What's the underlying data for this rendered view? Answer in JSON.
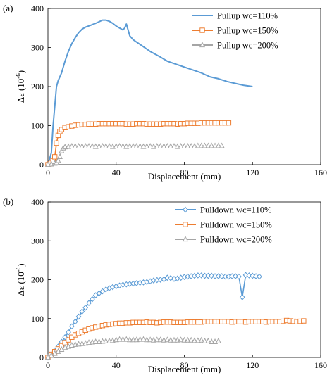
{
  "chart_data": [
    {
      "type": "line",
      "panel_label": "(a)",
      "xlabel": "Displacement (mm)",
      "ylabel_main": "Δε (10",
      "ylabel_sup": "-6",
      "ylabel_close": ")",
      "xlim": [
        0,
        160
      ],
      "ylim": [
        0,
        400
      ],
      "xticks": [
        "0",
        "40",
        "80",
        "120",
        "160"
      ],
      "yticks": [
        "0",
        "100",
        "200",
        "300",
        "400"
      ],
      "legend_position": "top-right",
      "grid": false,
      "series": [
        {
          "name": "Pullup wc=110%",
          "color": "#5B9BD5",
          "marker": "none",
          "x": [
            0,
            2,
            3,
            5,
            6,
            8,
            10,
            12,
            14,
            16,
            18,
            20,
            22,
            25,
            28,
            30,
            32,
            34,
            36,
            38,
            40,
            42,
            44,
            45,
            46,
            47,
            48,
            50,
            55,
            60,
            65,
            70,
            80,
            90,
            95,
            100,
            105,
            110,
            115,
            120
          ],
          "y": [
            0,
            30,
            100,
            200,
            215,
            235,
            265,
            290,
            310,
            325,
            338,
            347,
            352,
            357,
            362,
            366,
            370,
            370,
            367,
            362,
            355,
            350,
            345,
            350,
            360,
            345,
            330,
            320,
            305,
            290,
            278,
            265,
            250,
            235,
            225,
            220,
            213,
            208,
            203,
            200
          ]
        },
        {
          "name": "Pullup wc=150%",
          "color": "#ED7D31",
          "marker": "square",
          "x": [
            0,
            1,
            2,
            3,
            4,
            5,
            6,
            7,
            8,
            10,
            12,
            14,
            16,
            18,
            20,
            22,
            24,
            26,
            28,
            30,
            32,
            34,
            36,
            38,
            40,
            42,
            44,
            46,
            48,
            50,
            52,
            54,
            56,
            58,
            60,
            62,
            64,
            66,
            68,
            70,
            72,
            74,
            76,
            78,
            80,
            82,
            84,
            86,
            88,
            90,
            92,
            94,
            96,
            98,
            100,
            102,
            104,
            106
          ],
          "y": [
            0,
            2,
            5,
            10,
            20,
            55,
            75,
            85,
            90,
            95,
            97,
            99,
            101,
            102,
            103,
            103,
            104,
            104,
            104,
            105,
            105,
            105,
            105,
            105,
            105,
            105,
            105,
            104,
            104,
            104,
            105,
            105,
            105,
            104,
            104,
            104,
            104,
            104,
            105,
            105,
            105,
            105,
            104,
            105,
            105,
            106,
            106,
            106,
            106,
            107,
            107,
            107,
            107,
            107,
            107,
            107,
            107,
            107
          ]
        },
        {
          "name": "Pullup wc=200%",
          "color": "#A5A5A5",
          "marker": "triangle",
          "x": [
            0,
            2,
            4,
            5,
            6,
            7,
            8,
            9,
            10,
            12,
            14,
            16,
            18,
            20,
            22,
            24,
            26,
            28,
            30,
            32,
            34,
            36,
            38,
            40,
            42,
            44,
            46,
            48,
            50,
            52,
            54,
            56,
            58,
            60,
            62,
            64,
            66,
            68,
            70,
            72,
            74,
            76,
            78,
            80,
            82,
            84,
            86,
            88,
            90,
            92,
            94,
            96,
            98,
            100,
            102
          ],
          "y": [
            0,
            1,
            3,
            5,
            10,
            20,
            35,
            42,
            45,
            46,
            47,
            47,
            47,
            47,
            47,
            47,
            47,
            46,
            47,
            47,
            47,
            47,
            46,
            47,
            47,
            47,
            46,
            47,
            47,
            47,
            47,
            46,
            47,
            47,
            46,
            47,
            47,
            47,
            47,
            47,
            47,
            46,
            47,
            47,
            47,
            47,
            47,
            48,
            48,
            48,
            48,
            48,
            48,
            48,
            48
          ]
        }
      ]
    },
    {
      "type": "line",
      "panel_label": "(b)",
      "xlabel": "Displacement (mm)",
      "ylabel_main": "Δε (10",
      "ylabel_sup": "-6",
      "ylabel_close": ")",
      "xlim": [
        0,
        160
      ],
      "ylim": [
        0,
        400
      ],
      "xticks": [
        "0",
        "40",
        "80",
        "120",
        "160"
      ],
      "yticks": [
        "0",
        "100",
        "200",
        "300",
        "400"
      ],
      "legend_position": "top-right",
      "grid": false,
      "series": [
        {
          "name": "Pulldown wc=110%",
          "color": "#5B9BD5",
          "marker": "diamond",
          "x": [
            0,
            2,
            4,
            6,
            8,
            10,
            12,
            14,
            16,
            18,
            20,
            22,
            24,
            26,
            28,
            30,
            32,
            34,
            36,
            38,
            40,
            42,
            44,
            46,
            48,
            50,
            52,
            54,
            56,
            58,
            60,
            62,
            64,
            66,
            68,
            70,
            72,
            74,
            76,
            78,
            80,
            82,
            84,
            86,
            88,
            90,
            92,
            94,
            96,
            98,
            100,
            102,
            104,
            106,
            108,
            110,
            112,
            114,
            116,
            118,
            120,
            122,
            124
          ],
          "y": [
            0,
            8,
            18,
            28,
            40,
            52,
            65,
            80,
            92,
            105,
            118,
            128,
            140,
            150,
            160,
            165,
            170,
            175,
            178,
            181,
            183,
            185,
            187,
            188,
            189,
            190,
            191,
            192,
            193,
            194,
            196,
            198,
            199,
            200,
            201,
            205,
            204,
            202,
            203,
            205,
            207,
            208,
            209,
            210,
            211,
            211,
            210,
            210,
            210,
            209,
            209,
            209,
            208,
            208,
            209,
            209,
            208,
            155,
            212,
            211,
            210,
            209,
            208
          ]
        },
        {
          "name": "Pulldown wc=150%",
          "color": "#ED7D31",
          "marker": "square",
          "x": [
            0,
            2,
            4,
            6,
            8,
            10,
            12,
            14,
            16,
            18,
            20,
            22,
            24,
            26,
            28,
            30,
            32,
            34,
            36,
            38,
            40,
            42,
            44,
            46,
            48,
            50,
            52,
            54,
            56,
            58,
            60,
            62,
            64,
            66,
            68,
            70,
            72,
            74,
            76,
            78,
            80,
            82,
            84,
            86,
            88,
            90,
            92,
            94,
            96,
            98,
            100,
            102,
            104,
            106,
            108,
            110,
            112,
            114,
            116,
            118,
            120,
            122,
            124,
            126,
            128,
            130,
            132,
            134,
            136,
            138,
            140,
            142,
            144,
            146,
            148,
            150
          ],
          "y": [
            0,
            8,
            15,
            22,
            30,
            38,
            45,
            52,
            58,
            62,
            66,
            70,
            73,
            76,
            78,
            80,
            82,
            84,
            85,
            86,
            87,
            88,
            88,
            89,
            89,
            90,
            90,
            90,
            90,
            91,
            90,
            90,
            89,
            90,
            91,
            91,
            91,
            90,
            90,
            90,
            90,
            91,
            91,
            91,
            91,
            91,
            92,
            92,
            92,
            92,
            92,
            92,
            92,
            92,
            91,
            92,
            92,
            92,
            91,
            92,
            92,
            92,
            92,
            92,
            91,
            92,
            92,
            92,
            92,
            93,
            95,
            94,
            93,
            92,
            93,
            94
          ]
        },
        {
          "name": "Pulldown wc=200%",
          "color": "#A5A5A5",
          "marker": "triangle",
          "x": [
            0,
            2,
            4,
            6,
            8,
            10,
            12,
            14,
            16,
            18,
            20,
            22,
            24,
            26,
            28,
            30,
            32,
            34,
            36,
            38,
            40,
            42,
            44,
            46,
            48,
            50,
            52,
            54,
            56,
            58,
            60,
            62,
            64,
            66,
            68,
            70,
            72,
            74,
            76,
            78,
            80,
            82,
            84,
            86,
            88,
            90,
            92,
            94,
            96,
            98,
            100
          ],
          "y": [
            0,
            5,
            10,
            15,
            20,
            25,
            28,
            31,
            33,
            34,
            35,
            36,
            38,
            39,
            40,
            40,
            41,
            42,
            42,
            43,
            45,
            46,
            46,
            46,
            45,
            45,
            45,
            46,
            46,
            45,
            45,
            44,
            45,
            45,
            44,
            45,
            44,
            44,
            44,
            45,
            44,
            44,
            44,
            43,
            43,
            44,
            42,
            42,
            40,
            40,
            42
          ]
        }
      ]
    }
  ]
}
